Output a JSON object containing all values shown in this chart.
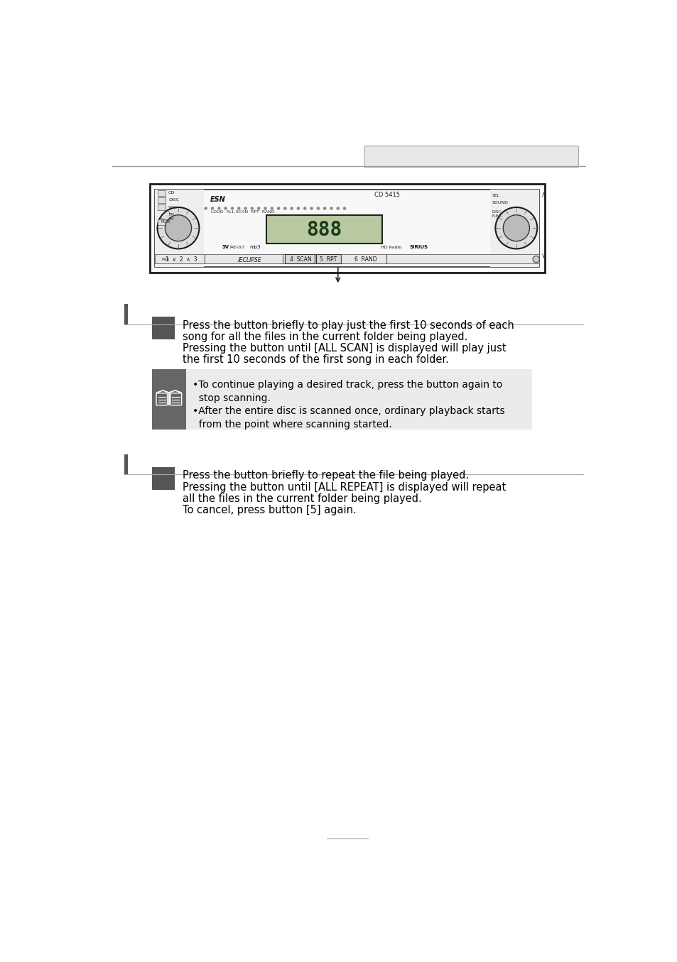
{
  "page_bg": "#ffffff",
  "header_tab_color": "#e8e8e8",
  "header_tab_border": "#aaaaaa",
  "header_line_color": "#999999",
  "section_bar_color": "#555555",
  "note_box_bg": "#ebebeb",
  "note_icon_bg": "#666666",
  "text_color": "#000000",
  "body_font_size": 10.5,
  "note_font_size": 10,
  "section1_body_lines": [
    "Press the button briefly to play just the first 10 seconds of each",
    "song for all the files in the current folder being played.",
    "Pressing the button until [ALL SCAN] is displayed will play just",
    "the first 10 seconds of the first song in each folder."
  ],
  "note_texts": [
    "•To continue playing a desired track, press the button again to",
    "  stop scanning.",
    "•After the entire disc is scanned once, ordinary playback starts",
    "  from the point where scanning started."
  ],
  "section2_body_lines": [
    "Press the button briefly to repeat the file being played.",
    "Pressing the button until [ALL REPEAT] is displayed will repeat",
    "all the files in the current folder being played.",
    "To cancel, press button [5] again."
  ]
}
